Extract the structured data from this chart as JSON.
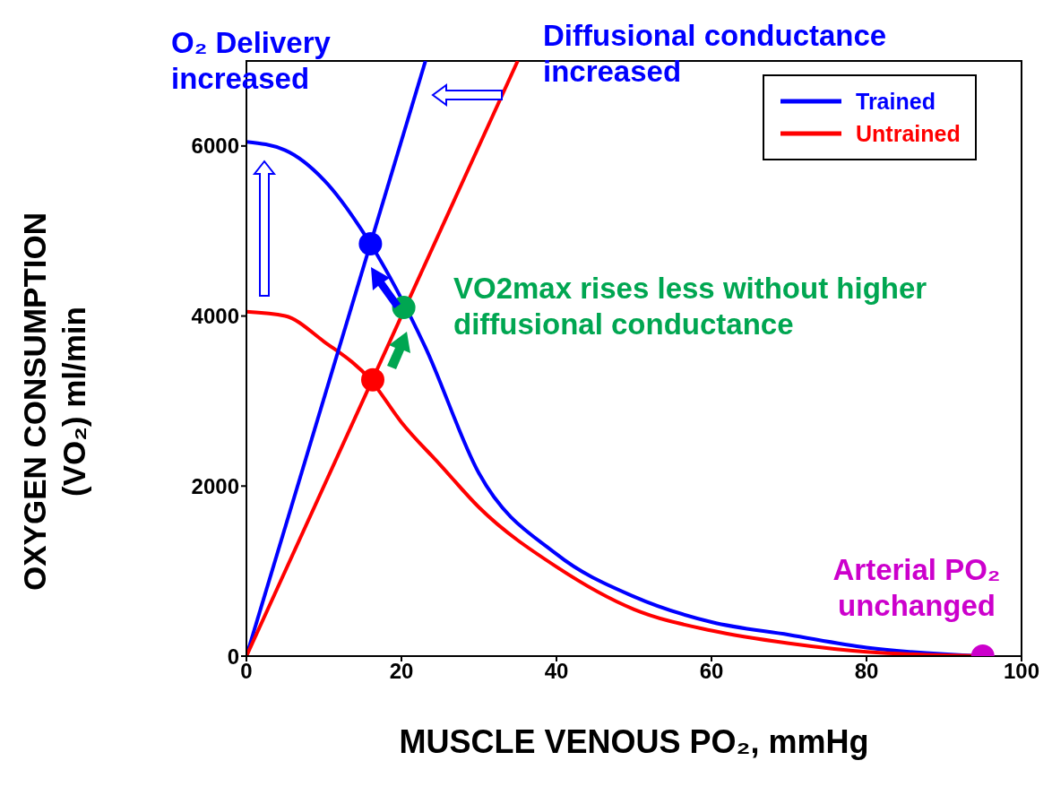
{
  "chart_data": {
    "type": "line",
    "xlabel": "MUSCLE VENOUS PO₂, mmHg",
    "ylabel": "OXYGEN CONSUMPTION (VO₂) ml/min",
    "xlim": [
      0,
      100
    ],
    "xticks": [
      0,
      20,
      40,
      60,
      80,
      100
    ],
    "ylim": [
      0,
      7000
    ],
    "yticks": [
      0,
      2000,
      4000,
      6000
    ],
    "grid": false,
    "legend": "top right",
    "marker": "none",
    "line_style": "solid",
    "series": [
      {
        "name": "Trained",
        "color": "#0000ff",
        "x": [
          0,
          5,
          10,
          16,
          23,
          30,
          40,
          50,
          60,
          70,
          80,
          95
        ],
        "values": [
          6050,
          5950,
          5600,
          4850,
          3650,
          2150,
          1200,
          700,
          400,
          250,
          100,
          0
        ]
      },
      {
        "name": "Untrained",
        "color": "#ff0000",
        "x": [
          0,
          5,
          10,
          16,
          20,
          25,
          30,
          40,
          50,
          60,
          70,
          80,
          95
        ],
        "values": [
          4050,
          4000,
          3700,
          3250,
          2750,
          2250,
          1750,
          1050,
          550,
          300,
          150,
          50,
          0
        ]
      },
      {
        "color": "#0000ff",
        "x": [
          0,
          23.1
        ],
        "values": [
          0,
          7000
        ]
      },
      {
        "color": "#ff0000",
        "x": [
          0,
          35
        ],
        "values": [
          0,
          7000
        ]
      },
      {
        "type": "scatter",
        "marker": "circle",
        "colors": [
          "#0000ff",
          "#ff0000",
          "#00a651",
          "#cc00cc"
        ],
        "x": [
          16,
          16.3,
          20.3,
          95
        ],
        "values": [
          4850,
          3250,
          4100,
          0
        ]
      }
    ],
    "annotations": [
      "O₂ Delivery increased",
      "Diffusional conductance increased",
      "VO2max rises less without higher diffusional conductance",
      "Arterial PO₂ unchanged"
    ]
  }
}
